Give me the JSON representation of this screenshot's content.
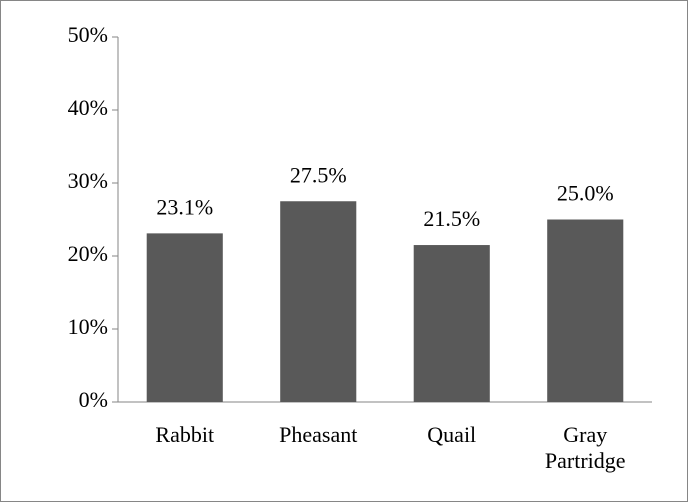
{
  "chart_data": {
    "type": "bar",
    "categories": [
      "Rabbit",
      "Pheasant",
      "Quail",
      "Gray Partridge"
    ],
    "values": [
      23.1,
      27.5,
      21.5,
      25.0
    ],
    "value_labels": [
      "23.1%",
      "27.5%",
      "21.5%",
      "25.0%"
    ],
    "color": "#595959",
    "ylim": [
      0,
      50
    ],
    "yticks": [
      {
        "value": 0,
        "label": "0%"
      },
      {
        "value": 10,
        "label": "10%"
      },
      {
        "value": 20,
        "label": "20%"
      },
      {
        "value": 30,
        "label": "30%"
      },
      {
        "value": 40,
        "label": "40%"
      },
      {
        "value": 50,
        "label": "50%"
      }
    ],
    "grid": false
  }
}
